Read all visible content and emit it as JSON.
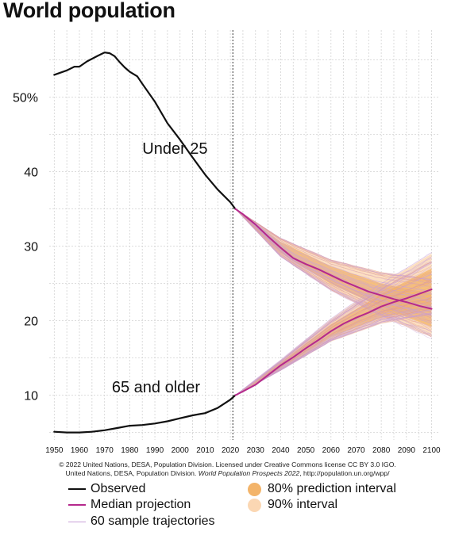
{
  "chart_data": {
    "type": "line",
    "title": "World population",
    "xlabel": "",
    "ylabel": "",
    "xlim": [
      1948,
      2103
    ],
    "ylim": [
      4,
      59
    ],
    "grid": true,
    "x_ticks": [
      1950,
      1960,
      1970,
      1980,
      1990,
      2000,
      2010,
      2020,
      2030,
      2040,
      2050,
      2060,
      2070,
      2080,
      2090,
      2100
    ],
    "y_ticks": [
      {
        "value": 50,
        "label": "50%"
      },
      {
        "value": 40,
        "label": "40"
      },
      {
        "value": 30,
        "label": "30"
      },
      {
        "value": 20,
        "label": "20"
      },
      {
        "value": 10,
        "label": "10"
      }
    ],
    "reference_line_x": 2021,
    "annotations": [
      {
        "text": "Under 25",
        "x": 2011,
        "y": 42.4
      },
      {
        "text": "65 and older",
        "x": 2008,
        "y": 10.4
      }
    ],
    "series": [
      {
        "name": "Under 25",
        "kind": "observed",
        "x": [
          1950,
          1955,
          1958,
          1960,
          1963,
          1967,
          1970,
          1972,
          1974,
          1976,
          1978,
          1980,
          1983,
          1985,
          1990,
          1995,
          2000,
          2005,
          2010,
          2015,
          2020,
          2022
        ],
        "y": [
          53.0,
          53.6,
          54.1,
          54.1,
          54.8,
          55.5,
          56.0,
          55.9,
          55.5,
          54.7,
          54.0,
          53.4,
          52.8,
          51.8,
          49.4,
          46.5,
          44.3,
          41.9,
          39.6,
          37.6,
          35.9,
          35.0
        ]
      },
      {
        "name": "Under 25",
        "kind": "median",
        "x": [
          2022,
          2025,
          2030,
          2035,
          2040,
          2045,
          2050,
          2055,
          2060,
          2065,
          2070,
          2075,
          2080,
          2085,
          2090,
          2095,
          2100
        ],
        "y": [
          35.0,
          34.3,
          32.9,
          31.3,
          29.8,
          28.4,
          27.6,
          26.9,
          26.1,
          25.3,
          24.6,
          23.9,
          23.4,
          22.9,
          22.5,
          22.0,
          21.6
        ]
      },
      {
        "name": "65 and older",
        "kind": "observed",
        "x": [
          1950,
          1955,
          1960,
          1965,
          1970,
          1975,
          1980,
          1985,
          1990,
          1995,
          2000,
          2005,
          2010,
          2015,
          2020,
          2022
        ],
        "y": [
          5.1,
          5.0,
          5.0,
          5.1,
          5.3,
          5.6,
          5.9,
          6.0,
          6.2,
          6.5,
          6.9,
          7.3,
          7.6,
          8.3,
          9.4,
          10.0
        ]
      },
      {
        "name": "65 and older",
        "kind": "median",
        "x": [
          2022,
          2025,
          2030,
          2035,
          2040,
          2045,
          2050,
          2055,
          2060,
          2065,
          2070,
          2075,
          2080,
          2085,
          2090,
          2095,
          2100
        ],
        "y": [
          10.0,
          10.5,
          11.4,
          12.7,
          14.0,
          15.1,
          16.3,
          17.4,
          18.6,
          19.6,
          20.4,
          21.1,
          21.9,
          22.5,
          23.0,
          23.6,
          24.2
        ]
      }
    ],
    "intervals": [
      {
        "group": "Under 25",
        "level": "80%",
        "x": [
          2022,
          2040,
          2060,
          2080,
          2100
        ],
        "lower": [
          35.0,
          29.1,
          24.9,
          21.8,
          19.2
        ],
        "upper": [
          35.0,
          30.6,
          27.3,
          25.0,
          23.6
        ]
      },
      {
        "group": "Under 25",
        "level": "90%",
        "x": [
          2022,
          2040,
          2060,
          2080,
          2100
        ],
        "lower": [
          35.0,
          28.6,
          24.1,
          20.7,
          17.8
        ],
        "upper": [
          35.0,
          31.1,
          28.2,
          26.5,
          25.7
        ]
      },
      {
        "group": "65 and older",
        "level": "80%",
        "x": [
          2022,
          2040,
          2060,
          2080,
          2100
        ],
        "lower": [
          10.0,
          13.6,
          17.8,
          20.4,
          21.7
        ],
        "upper": [
          10.0,
          14.4,
          19.5,
          23.6,
          27.0
        ]
      },
      {
        "group": "65 and older",
        "level": "90%",
        "x": [
          2022,
          2040,
          2060,
          2080,
          2100
        ],
        "lower": [
          10.0,
          13.3,
          17.2,
          19.6,
          20.7
        ],
        "upper": [
          10.0,
          14.7,
          20.2,
          24.9,
          29.0
        ]
      }
    ],
    "sample_trajectories_count": 60
  },
  "credit_line_1": "© 2022 United Nations, DESA, Population Division. Licensed under Creative Commons license CC BY 3.0 IGO.",
  "credit_line_2_a": "United Nations, DESA, Population Division.",
  "credit_line_2_b": "World Population Prospects 2022",
  "credit_line_2_c": ", http://population.un.org/wpp/",
  "legend": {
    "observed": "Observed",
    "median": "Median projection",
    "samples": "60 sample trajectories",
    "pi80": "80% prediction interval",
    "pi90": "90% interval"
  },
  "colors": {
    "observed": "#111111",
    "median": "#b5298c",
    "samples": "#c9a0d8",
    "pi80": "#f3b46a",
    "pi90": "#fbd7b3",
    "grid": "#d2d2d2"
  }
}
